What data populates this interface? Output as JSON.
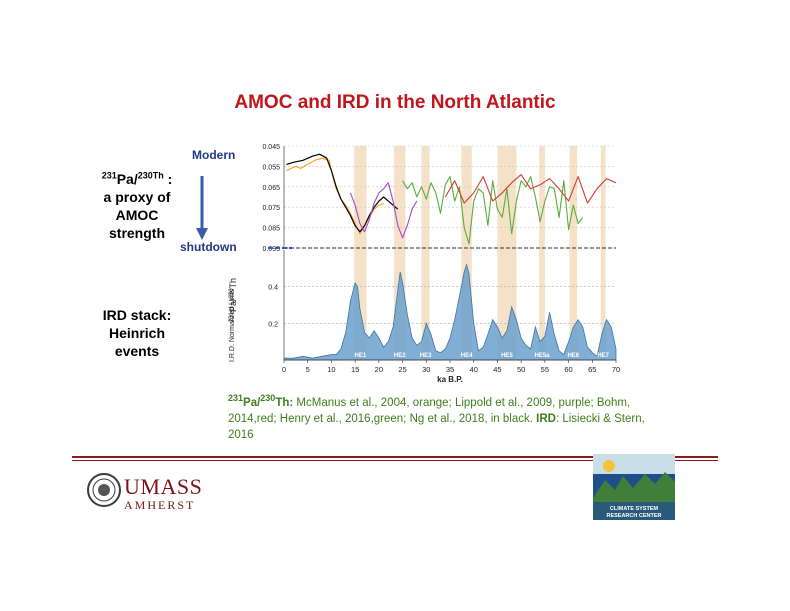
{
  "title": "AMOC and IRD in the North Atlantic",
  "left_labels": {
    "proxy_sup1": "231",
    "proxy_pa": "Pa/",
    "proxy_sup2": "230Th",
    "proxy_colon": " :",
    "proxy_line2": "a proxy of",
    "proxy_line3": "AMOC",
    "proxy_line4": "strength",
    "ird_line1": "IRD stack:",
    "ird_line2": "Heinrich",
    "ird_line3": "events"
  },
  "arrow": {
    "top_label": "Modern",
    "bottom_label": "shutdown"
  },
  "caption": {
    "sup1": "231",
    "pa": "Pa/",
    "sup2": "230",
    "th": "Th:",
    "text1": " McManus et al., 2004, orange; Lippold et al., 2009, purple; Bohm, 2014,red; Henry et al., 2016,green; Ng et al., 2018, in black.  ",
    "ird_bold": "IRD",
    "text2": ": Lisiecki & Stern, 2016"
  },
  "logos": {
    "umass_line1": "UMASS",
    "umass_line2": "AMHERST",
    "csrc_line1": "CLIMATE SYSTEM",
    "csrc_line2": "RESEARCH CENTER"
  },
  "colors": {
    "title": "#c0161c",
    "orange": "#f5a01a",
    "purple": "#a64ac9",
    "red": "#d63a2f",
    "green": "#5aac3c",
    "black": "#000000",
    "ird_fill": "#6aa0cc",
    "heinrich_band": "#f5e1c8",
    "arrow": "#3a5ca8"
  },
  "chart_data": {
    "type": "line",
    "xlabel": "ka B.P.",
    "xlim": [
      0,
      70
    ],
    "xticks": [
      0,
      5,
      10,
      15,
      20,
      25,
      30,
      35,
      40,
      45,
      50,
      55,
      60,
      65,
      70
    ],
    "top_panel": {
      "ylabel_sup1": "231",
      "ylabel_pa": "Pa/",
      "ylabel_sup2": "230",
      "ylabel_th": "Th",
      "ylim": [
        0.045,
        0.095
      ],
      "inverted": true,
      "yticks": [
        "0.045",
        "0.055",
        "0.065",
        "0.075",
        "0.085",
        "0.095"
      ],
      "series": [
        {
          "color": "orange",
          "x": [
            0.5,
            1.5,
            2.5,
            3.5,
            5,
            6.5,
            8,
            9.5,
            10.5,
            11,
            12,
            13,
            14,
            15,
            16,
            17,
            18,
            19,
            20,
            21
          ],
          "y": [
            0.057,
            0.056,
            0.055,
            0.056,
            0.054,
            0.052,
            0.051,
            0.052,
            0.062,
            0.066,
            0.071,
            0.074,
            0.078,
            0.083,
            0.088,
            0.084,
            0.08,
            0.076,
            0.074,
            0.073
          ]
        },
        {
          "color": "black",
          "x": [
            0.5,
            2,
            4,
            6,
            7.5,
            9,
            10,
            11,
            12,
            13,
            14,
            15,
            16,
            17,
            18,
            19,
            20,
            21,
            22,
            23,
            24
          ],
          "y": [
            0.054,
            0.053,
            0.052,
            0.05,
            0.049,
            0.051,
            0.057,
            0.065,
            0.071,
            0.075,
            0.079,
            0.084,
            0.087,
            0.084,
            0.079,
            0.075,
            0.072,
            0.07,
            0.072,
            0.074,
            0.076
          ]
        },
        {
          "color": "purple",
          "x": [
            14,
            15,
            16,
            17,
            18,
            19,
            20,
            21,
            22,
            23,
            24,
            25,
            26,
            27,
            28
          ],
          "y": [
            0.068,
            0.074,
            0.083,
            0.087,
            0.081,
            0.073,
            0.068,
            0.066,
            0.063,
            0.072,
            0.084,
            0.09,
            0.084,
            0.076,
            0.072
          ]
        },
        {
          "color": "green",
          "x": [
            25,
            26,
            27,
            28,
            29,
            30,
            31,
            32,
            33,
            34,
            35,
            36,
            37,
            38,
            39,
            40,
            41,
            42,
            43,
            44,
            45,
            46,
            47,
            48,
            49,
            50,
            51,
            52,
            53,
            54,
            55,
            56,
            57,
            58,
            59,
            60,
            61,
            62,
            63
          ],
          "y": [
            0.062,
            0.066,
            0.063,
            0.07,
            0.065,
            0.071,
            0.063,
            0.068,
            0.078,
            0.064,
            0.06,
            0.072,
            0.065,
            0.085,
            0.093,
            0.072,
            0.066,
            0.068,
            0.084,
            0.062,
            0.076,
            0.08,
            0.066,
            0.088,
            0.072,
            0.062,
            0.065,
            0.06,
            0.07,
            0.082,
            0.072,
            0.065,
            0.066,
            0.08,
            0.062,
            0.086,
            0.074,
            0.083,
            0.08
          ]
        },
        {
          "color": "red",
          "x": [
            34,
            36,
            38,
            40,
            42,
            44,
            46,
            48,
            50,
            52,
            54,
            56,
            58,
            60,
            62,
            64,
            66,
            68,
            70
          ],
          "y": [
            0.07,
            0.062,
            0.073,
            0.068,
            0.06,
            0.072,
            0.068,
            0.063,
            0.059,
            0.066,
            0.064,
            0.061,
            0.066,
            0.072,
            0.06,
            0.073,
            0.066,
            0.061,
            0.063
          ]
        }
      ]
    },
    "bottom_panel": {
      "ylabel": "I.R.D. Normalized Units",
      "ylim": [
        0,
        0.6
      ],
      "yticks": [
        "0.2",
        "0.4"
      ],
      "series": [
        {
          "color": "ird_fill",
          "x": [
            0,
            2,
            4,
            6,
            8,
            10,
            11,
            12,
            13,
            14,
            15,
            15.5,
            16,
            17,
            18,
            19,
            20,
            21,
            22,
            23,
            24,
            24.5,
            25,
            26,
            27,
            28,
            29,
            30,
            31,
            32,
            33,
            34,
            35,
            36,
            37,
            38,
            38.5,
            39,
            40,
            41,
            42,
            43,
            44,
            45,
            46,
            47,
            48,
            49,
            50,
            51,
            52,
            53,
            54,
            55,
            56,
            57,
            58,
            59,
            60,
            61,
            62,
            63,
            64,
            65,
            66,
            67,
            68,
            69,
            70
          ],
          "y": [
            0.01,
            0.01,
            0.02,
            0.01,
            0.02,
            0.03,
            0.03,
            0.06,
            0.15,
            0.32,
            0.42,
            0.4,
            0.28,
            0.15,
            0.12,
            0.16,
            0.12,
            0.07,
            0.1,
            0.18,
            0.38,
            0.48,
            0.42,
            0.25,
            0.12,
            0.08,
            0.1,
            0.2,
            0.14,
            0.05,
            0.04,
            0.06,
            0.12,
            0.22,
            0.35,
            0.48,
            0.52,
            0.47,
            0.2,
            0.05,
            0.07,
            0.14,
            0.22,
            0.18,
            0.12,
            0.16,
            0.29,
            0.22,
            0.12,
            0.08,
            0.06,
            0.18,
            0.1,
            0.13,
            0.26,
            0.14,
            0.05,
            0.03,
            0.1,
            0.18,
            0.22,
            0.18,
            0.07,
            0.04,
            0.02,
            0.14,
            0.22,
            0.18,
            0.06
          ]
        }
      ],
      "heinrich_events": [
        {
          "label": "HE1",
          "x0": 14.8,
          "x1": 17.4
        },
        {
          "label": "HE2",
          "x0": 23.2,
          "x1": 25.6
        },
        {
          "label": "HE3",
          "x0": 29.0,
          "x1": 30.7
        },
        {
          "label": "HE4",
          "x0": 37.4,
          "x1": 39.6
        },
        {
          "label": "HE5",
          "x0": 45.0,
          "x1": 49.0
        },
        {
          "label": "HE5a",
          "x0": 53.8,
          "x1": 55.0
        },
        {
          "label": "HE6",
          "x0": 60.2,
          "x1": 61.8
        },
        {
          "label": "HE7",
          "x0": 66.8,
          "x1": 67.8
        }
      ]
    }
  }
}
